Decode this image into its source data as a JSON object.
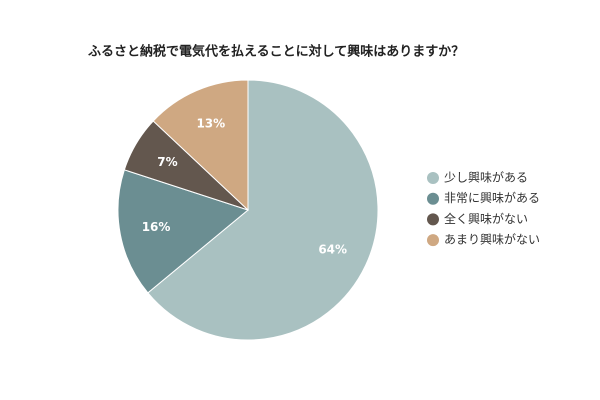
{
  "chart_data": {
    "type": "pie",
    "title": "ふるさと納税で電気代を払えることに対して興味はありますか？",
    "categories": [
      "少し興味がある",
      "非常に興味がある",
      "全く興味がない",
      "あまり興味がない"
    ],
    "values": [
      64,
      16,
      7,
      13
    ],
    "value_labels": [
      "64%",
      "16%",
      "7%",
      "13%"
    ],
    "colors": [
      "#a9c1c1",
      "#6b8e92",
      "#63574e",
      "#cfa882"
    ],
    "legend": "right"
  }
}
